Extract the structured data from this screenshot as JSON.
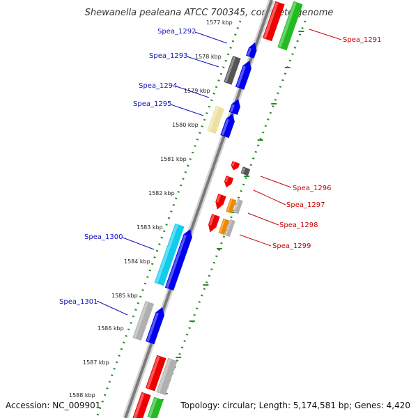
{
  "title": "Shewanella pealeana ATCC 700345, complete genome",
  "footer": {
    "accession": "Accession: NC_009901",
    "topology": "Topology: circular; Length: 5,174,581 bp; Genes: 4,420"
  },
  "colors": {
    "backbone": "#888888",
    "ticks": "#2a8a2a",
    "left_label": "#1010c0",
    "right_label": "#cc0000",
    "red": "#ee0000",
    "green": "#22bb22",
    "blue": "#0000ee",
    "gray": "#b0b0b0",
    "dark_gray": "#555555",
    "yellow": "#eee0a0",
    "cyan": "#11ccee",
    "orange": "#ee8800"
  },
  "tick_labels": [
    "1577 kbp",
    "1578 kbp",
    "1579 kbp",
    "1580 kbp",
    "1581 kbp",
    "1582 kbp",
    "1583 kbp",
    "1584 kbp",
    "1585 kbp",
    "1586 kbp",
    "1587 kbp",
    "1588 kbp"
  ],
  "left_labels": [
    "Spea_1292",
    "Spea_1293",
    "Spea_1294",
    "Spea_1295",
    "Spea_1300",
    "Spea_1301"
  ],
  "right_labels": [
    "Spea_1291",
    "Spea_1296",
    "Spea_1297",
    "Spea_1298",
    "Spea_1299"
  ]
}
